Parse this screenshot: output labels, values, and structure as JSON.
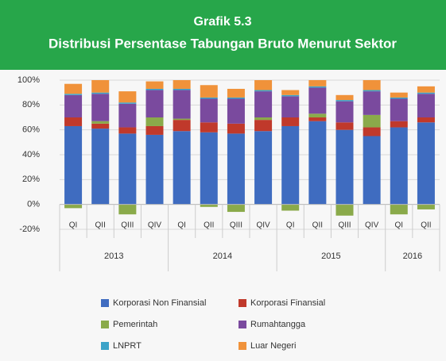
{
  "chart_data": {
    "type": "stacked_bar",
    "title": "Grafik 5.3",
    "subtitle": "Distribusi Persentase Tabungan Bruto Menurut Sektor",
    "categories": [
      "QI",
      "QII",
      "QIII",
      "QIV",
      "QI",
      "QII",
      "QIII",
      "QIV",
      "QI",
      "QII",
      "QIII",
      "QIV",
      "QI",
      "QII"
    ],
    "year_labels": [
      "2013",
      "2014",
      "2015",
      "2016"
    ],
    "series": [
      {
        "name": "Korporasi Non Finansial",
        "color": "#3f6cc0",
        "values": [
          63,
          61,
          57,
          56,
          59,
          58,
          57,
          59,
          63,
          67,
          60,
          55,
          62,
          66
        ]
      },
      {
        "name": "Korporasi Finansial",
        "color": "#c0392b",
        "values": [
          7,
          4,
          5,
          7,
          9,
          8,
          8,
          9,
          7,
          3,
          6,
          7,
          5,
          4
        ]
      },
      {
        "name": "Pemerintah",
        "color": "#8aaa4a",
        "values": [
          -3,
          2,
          -8,
          7,
          1,
          -2,
          -6,
          2,
          -5,
          3,
          -9,
          10,
          -8,
          -4
        ]
      },
      {
        "name": "Rumahtangga",
        "color": "#7a4a9e",
        "values": [
          18,
          22,
          19,
          22,
          23,
          19,
          20,
          21,
          17,
          21,
          17,
          19,
          18,
          19
        ]
      },
      {
        "name": "LNPRT",
        "color": "#3ba3c8",
        "values": [
          1,
          1,
          1,
          1,
          1,
          1,
          1,
          1,
          1,
          1,
          1,
          1,
          1,
          1
        ]
      },
      {
        "name": "Luar Negeri",
        "color": "#f0923a",
        "values": [
          8,
          10,
          9,
          6,
          7,
          10,
          7,
          8,
          4,
          5,
          4,
          8,
          4,
          5
        ]
      }
    ],
    "ylim": [
      -20,
      100
    ],
    "yticks": [
      {
        "value": -20,
        "label": "-20%"
      },
      {
        "value": 0,
        "label": "0%"
      },
      {
        "value": 20,
        "label": "20%"
      },
      {
        "value": 40,
        "label": "40%"
      },
      {
        "value": 60,
        "label": "60%"
      },
      {
        "value": 80,
        "label": "80%"
      },
      {
        "value": 100,
        "label": "100%"
      }
    ],
    "grid": true
  }
}
